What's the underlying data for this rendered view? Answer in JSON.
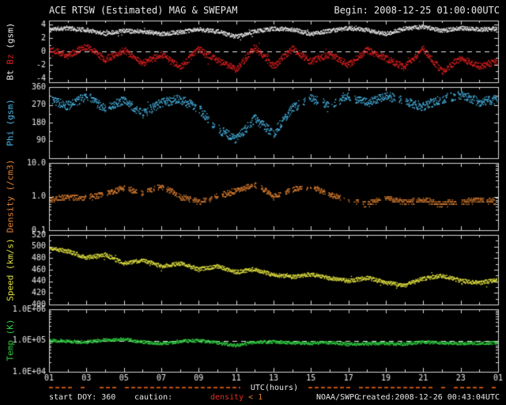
{
  "header": {
    "title": "ACE RTSW (Estimated) MAG & SWEPAM",
    "begin_label": "Begin: 2008-12-25 01:00:00UTC"
  },
  "footer": {
    "start_doy": "start DOY: 360",
    "caution_label": "caution:",
    "density_caution": [
      {
        "text": "density ",
        "color": "#e03020"
      },
      {
        "text": "< 1",
        "color": "#e08030"
      }
    ],
    "x_axis_title": "UTC(hours)",
    "agency": "NOAA/SWPC",
    "created": "created:2008-12-26 00:43:04UTC"
  },
  "colors": {
    "background": "#000000",
    "frame": "#d8d8d8",
    "text": "#e8e8e8",
    "bt": "#e8e8e8",
    "bz": "#dd2020",
    "phi": "#4ab8e8",
    "density": "#e08030",
    "speed": "#e0e040",
    "temp": "#30c840",
    "caution_dashes": "#c05010"
  },
  "chart_data": {
    "type": "scatter",
    "title": "ACE RTSW (Estimated) MAG & SWEPAM",
    "xlabel": "UTC(hours)",
    "x_range": [
      1,
      25
    ],
    "x_tick_hours": [
      1,
      3,
      5,
      7,
      9,
      11,
      13,
      15,
      17,
      19,
      21,
      23,
      25
    ],
    "x_tick_labels": [
      "01",
      "03",
      "05",
      "07",
      "09",
      "11",
      "13",
      "15",
      "17",
      "19",
      "21",
      "23",
      "01"
    ],
    "grid": false,
    "panels": [
      {
        "name": "mag",
        "scale": "linear",
        "ylim": [
          -4.6,
          4.6
        ],
        "yticks": [
          4,
          2,
          0,
          -2,
          -4
        ],
        "ytick_labels": [
          "4",
          "2",
          "0",
          "-2",
          "-4"
        ],
        "dashed_at": 0,
        "ylabel_parts": [
          {
            "text": "Bt ",
            "color": "#e8e8e8"
          },
          {
            "text": "Bz",
            "color": "#dd2020"
          },
          {
            "text": " (gsm)",
            "color": "#e8e8e8"
          }
        ],
        "series": [
          {
            "name": "Bt",
            "color": "#e8e8e8",
            "jitter": 0.3,
            "seed": 11,
            "values_hourly": [
              3.3,
              3.5,
              3.2,
              2.7,
              3.1,
              3.0,
              2.6,
              2.9,
              3.3,
              3.0,
              2.2,
              3.0,
              3.4,
              3.3,
              2.6,
              3.1,
              3.5,
              3.2,
              2.6,
              3.4,
              3.7,
              3.1,
              3.5,
              3.3,
              3.4
            ]
          },
          {
            "name": "Bz",
            "color": "#dd2020",
            "jitter": 0.5,
            "seed": 22,
            "values_hourly": [
              0.5,
              -0.6,
              0.8,
              -1.2,
              0.2,
              -1.8,
              -0.4,
              -2.4,
              0.4,
              -1.3,
              -2.7,
              0.6,
              -2.2,
              0.4,
              -1.5,
              -0.4,
              -2.0,
              0.2,
              -1.0,
              -2.4,
              0.4,
              -3.0,
              -1.0,
              -2.2,
              -1.4
            ]
          }
        ]
      },
      {
        "name": "phi",
        "scale": "linear",
        "ylim": [
          0,
          360
        ],
        "yticks": [
          90,
          180,
          270,
          360
        ],
        "ytick_labels": [
          "90",
          "180",
          "270",
          "360"
        ],
        "ylabel_parts": [
          {
            "text": "Phi (gsm)",
            "color": "#4ab8e8"
          }
        ],
        "series": [
          {
            "name": "Phi",
            "color": "#4ab8e8",
            "jitter": 22,
            "seed": 33,
            "gap_prob": 0.02,
            "values_hourly": [
              300,
              265,
              315,
              250,
              295,
              225,
              280,
              300,
              250,
              150,
              95,
              200,
              125,
              255,
              300,
              270,
              310,
              280,
              315,
              290,
              260,
              300,
              320,
              285,
              300
            ]
          }
        ]
      },
      {
        "name": "density",
        "scale": "log",
        "ylim": [
          0.1,
          10
        ],
        "yticks": [
          10,
          1,
          0.1
        ],
        "ytick_labels": [
          "10.0",
          "1.0",
          "0.1"
        ],
        "ylabel_parts": [
          {
            "text": "Density (/cm3)",
            "color": "#e08030"
          }
        ],
        "series": [
          {
            "name": "Density",
            "color": "#e08030",
            "jitter": 0.08,
            "quantize": true,
            "seed": 44,
            "gap_prob": 0.03,
            "values_hourly": [
              0.8,
              1.0,
              0.9,
              1.2,
              1.8,
              1.2,
              2.0,
              1.0,
              0.7,
              1.0,
              1.5,
              2.2,
              1.0,
              1.6,
              2.0,
              1.1,
              0.8,
              0.6,
              0.9,
              0.7,
              0.8,
              0.6,
              0.7,
              0.8,
              0.7
            ]
          }
        ]
      },
      {
        "name": "speed",
        "scale": "linear",
        "ylim": [
          400,
          520
        ],
        "yticks": [
          520,
          500,
          480,
          460,
          440,
          420,
          400
        ],
        "ytick_labels": [
          "520",
          "500",
          "480",
          "460",
          "440",
          "420",
          "400"
        ],
        "ylabel_parts": [
          {
            "text": "Speed (km/s)",
            "color": "#e0e040"
          }
        ],
        "series": [
          {
            "name": "Speed",
            "color": "#e0e040",
            "jitter": 3.5,
            "seed": 55,
            "values_hourly": [
              498,
              492,
              481,
              486,
              471,
              477,
              466,
              471,
              461,
              466,
              456,
              461,
              451,
              448,
              452,
              446,
              441,
              446,
              438,
              433,
              445,
              450,
              441,
              438,
              442
            ]
          }
        ]
      },
      {
        "name": "temp",
        "scale": "log",
        "ylim": [
          10000,
          1000000
        ],
        "yticks": [
          1000000,
          100000,
          10000
        ],
        "ytick_labels": [
          "1.0E+06",
          "1.0E+05",
          "1.0E+04"
        ],
        "dashed_at": 100000,
        "ylabel_parts": [
          {
            "text": "Temp (K)",
            "color": "#30c840"
          }
        ],
        "series": [
          {
            "name": "Temp",
            "color": "#30c840",
            "jitter": 0.05,
            "seed": 66,
            "values_hourly": [
              100000,
              95000,
              90000,
              105000,
              110000,
              90000,
              80000,
              95000,
              100000,
              85000,
              70000,
              90000,
              92000,
              85000,
              82000,
              88000,
              76000,
              80000,
              82000,
              78000,
              90000,
              85000,
              80000,
              83000,
              85000
            ]
          }
        ]
      }
    ]
  }
}
